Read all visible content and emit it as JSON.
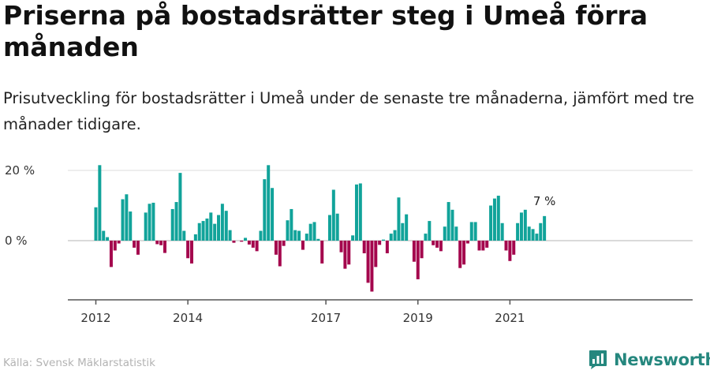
{
  "header": {
    "title": "Priserna på bostadsrätter steg i Umeå förra månaden",
    "subtitle": "Prisutveckling för bostadsrätter i Umeå under de senaste tre månaderna, jämfört med tre månader tidigare."
  },
  "footer": {
    "source": "Källa: Svensk Mäklarstatistik",
    "brand": "Newsworthy"
  },
  "colors": {
    "positive": "#11a39a",
    "negative": "#a4064d",
    "brand": "#25877e",
    "gridline": "#dcdcdc",
    "axis": "#555555"
  },
  "icons": {
    "brand_logo": "newsworthy-logo-icon"
  },
  "chart_data": {
    "type": "bar",
    "x_start": "2012-01",
    "x_end": "2021-12",
    "x_ticks": [
      "2012",
      "2014",
      "2017",
      "2019",
      "2021"
    ],
    "y_ticks": [
      20,
      0
    ],
    "y_tick_labels": [
      "20 %",
      "0 %"
    ],
    "ylim": [
      -17,
      22
    ],
    "grid": true,
    "values": [
      9.5,
      21.5,
      2.8,
      1.0,
      -7.5,
      -2.8,
      -0.8,
      11.8,
      13.2,
      8.3,
      -2.0,
      -4.0,
      0.0,
      8.0,
      10.5,
      10.8,
      -1.0,
      -1.3,
      -3.5,
      0.0,
      9.0,
      11.0,
      19.3,
      2.8,
      -5.0,
      -6.5,
      1.8,
      5.0,
      5.6,
      6.3,
      8.0,
      4.8,
      7.3,
      10.5,
      8.5,
      3.0,
      -0.6,
      0.0,
      -0.3,
      0.8,
      -1.1,
      -2.0,
      -3.0,
      2.8,
      17.5,
      21.5,
      15.0,
      -4.0,
      -7.3,
      -1.5,
      5.8,
      9.0,
      3.0,
      2.8,
      -2.6,
      2.0,
      4.8,
      5.3,
      0.5,
      -6.5,
      0.0,
      7.3,
      14.5,
      7.7,
      -3.3,
      -8.0,
      -6.8,
      1.5,
      16.0,
      16.3,
      -3.6,
      -12.0,
      -14.5,
      -7.5,
      -1.2,
      0.3,
      -3.6,
      2.0,
      3.0,
      12.3,
      5.0,
      7.5,
      0.0,
      -6.0,
      -11.0,
      -5.0,
      2.0,
      5.6,
      -1.3,
      -2.0,
      -3.0,
      4.0,
      11.0,
      8.8,
      4.0,
      -7.8,
      -6.8,
      -0.8,
      5.3,
      5.3,
      -2.8,
      -2.8,
      -2.0,
      10.0,
      12.0,
      12.8,
      5.0,
      -2.8,
      -5.8,
      -4.0,
      5.0,
      8.0,
      8.8,
      4.0,
      3.3,
      2.0,
      5.0,
      7.0
    ],
    "last_value_label": "7 %"
  }
}
